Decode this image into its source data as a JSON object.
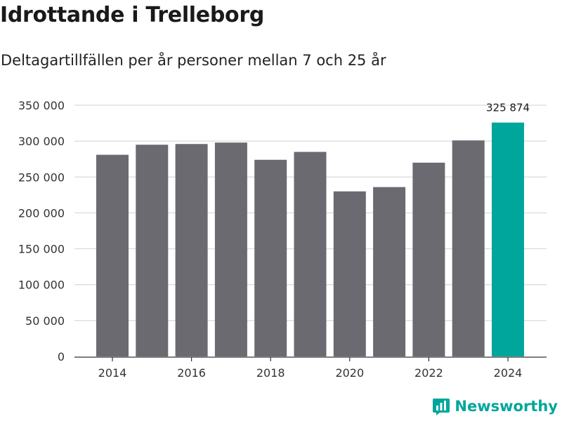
{
  "header": {
    "title": "Idrottande i Trelleborg",
    "subtitle": "Deltagartillfällen per år personer mellan 7 och 25 år"
  },
  "brand": {
    "name": "Newsworthy",
    "icon": "bar-chart-logo-icon",
    "color": "#00a69c"
  },
  "colors": {
    "bar": "#6b6a70",
    "highlight": "#00a69c",
    "grid": "#d9d9d9",
    "axis": "#333333"
  },
  "chart_data": {
    "type": "bar",
    "title": "Idrottande i Trelleborg",
    "subtitle": "Deltagartillfällen per år personer mellan 7 och 25 år",
    "xlabel": "",
    "ylabel": "",
    "categories": [
      "2014",
      "2015",
      "2016",
      "2017",
      "2018",
      "2019",
      "2020",
      "2021",
      "2022",
      "2023",
      "2024"
    ],
    "values": [
      281000,
      295000,
      296000,
      298000,
      274000,
      285000,
      230000,
      236000,
      270000,
      301000,
      325874
    ],
    "highlight_index": 10,
    "annotation": "325 874",
    "x_tick_labels": [
      "2014",
      "2016",
      "2018",
      "2020",
      "2022",
      "2024"
    ],
    "y_tick_labels": [
      "0",
      "50 000",
      "100 000",
      "150 000",
      "200 000",
      "250 000",
      "300 000",
      "350 000"
    ],
    "y_ticks": [
      0,
      50000,
      100000,
      150000,
      200000,
      250000,
      300000,
      350000
    ],
    "ylim": [
      0,
      350000
    ],
    "grid": true
  }
}
